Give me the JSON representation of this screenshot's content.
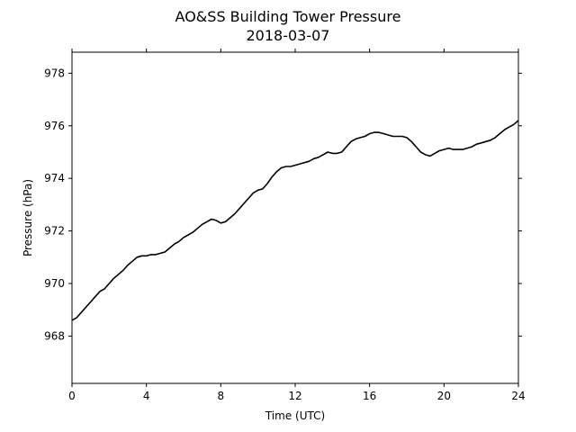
{
  "chart_data": {
    "type": "line",
    "title": "AO&SS Building Tower Pressure",
    "subtitle": "2018-03-07",
    "xlabel": "Time (UTC)",
    "ylabel": "Pressure (hPa)",
    "xlim": [
      0,
      24
    ],
    "ylim": [
      966.2,
      978.8
    ],
    "xticks": [
      0,
      4,
      8,
      12,
      16,
      20,
      24
    ],
    "yticks": [
      968,
      970,
      972,
      974,
      976,
      978
    ],
    "grid": false,
    "line_color": "#000000",
    "series": [
      {
        "x": [
          0,
          0.25,
          0.5,
          0.75,
          1,
          1.25,
          1.5,
          1.75,
          2,
          2.25,
          2.5,
          2.75,
          3,
          3.25,
          3.5,
          3.75,
          4,
          4.25,
          4.5,
          4.75,
          5,
          5.25,
          5.5,
          5.75,
          6,
          6.25,
          6.5,
          6.75,
          7,
          7.25,
          7.5,
          7.75,
          8,
          8.25,
          8.5,
          8.75,
          9,
          9.25,
          9.5,
          9.75,
          10,
          10.25,
          10.5,
          10.75,
          11,
          11.25,
          11.5,
          11.75,
          12,
          12.25,
          12.5,
          12.75,
          13,
          13.25,
          13.5,
          13.75,
          14,
          14.25,
          14.5,
          14.75,
          15,
          15.25,
          15.5,
          15.75,
          16,
          16.25,
          16.5,
          16.75,
          17,
          17.25,
          17.5,
          17.75,
          18,
          18.25,
          18.5,
          18.75,
          19,
          19.25,
          19.5,
          19.75,
          20,
          20.25,
          20.5,
          20.75,
          21,
          21.25,
          21.5,
          21.75,
          22,
          22.25,
          22.5,
          22.75,
          23,
          23.25,
          23.5,
          23.75,
          24
        ],
        "y": [
          968.6,
          968.7,
          968.9,
          969.1,
          969.3,
          969.5,
          969.7,
          969.8,
          970.0,
          970.2,
          970.35,
          970.5,
          970.7,
          970.85,
          971.0,
          971.05,
          971.05,
          971.1,
          971.1,
          971.15,
          971.2,
          971.35,
          971.5,
          971.6,
          971.75,
          971.85,
          971.95,
          972.1,
          972.25,
          972.35,
          972.45,
          972.4,
          972.3,
          972.35,
          972.5,
          972.65,
          972.85,
          973.05,
          973.25,
          973.45,
          973.55,
          973.6,
          973.8,
          974.05,
          974.25,
          974.4,
          974.45,
          974.45,
          974.5,
          974.55,
          974.6,
          974.65,
          974.75,
          974.8,
          974.9,
          975.0,
          974.95,
          974.95,
          975.0,
          975.2,
          975.4,
          975.5,
          975.55,
          975.6,
          975.7,
          975.75,
          975.75,
          975.7,
          975.65,
          975.6,
          975.6,
          975.6,
          975.55,
          975.4,
          975.2,
          975.0,
          974.9,
          974.85,
          974.95,
          975.05,
          975.1,
          975.15,
          975.1,
          975.1,
          975.1,
          975.15,
          975.2,
          975.3,
          975.35,
          975.4,
          975.45,
          975.55,
          975.7,
          975.85,
          975.95,
          976.05,
          976.2
        ]
      }
    ]
  }
}
